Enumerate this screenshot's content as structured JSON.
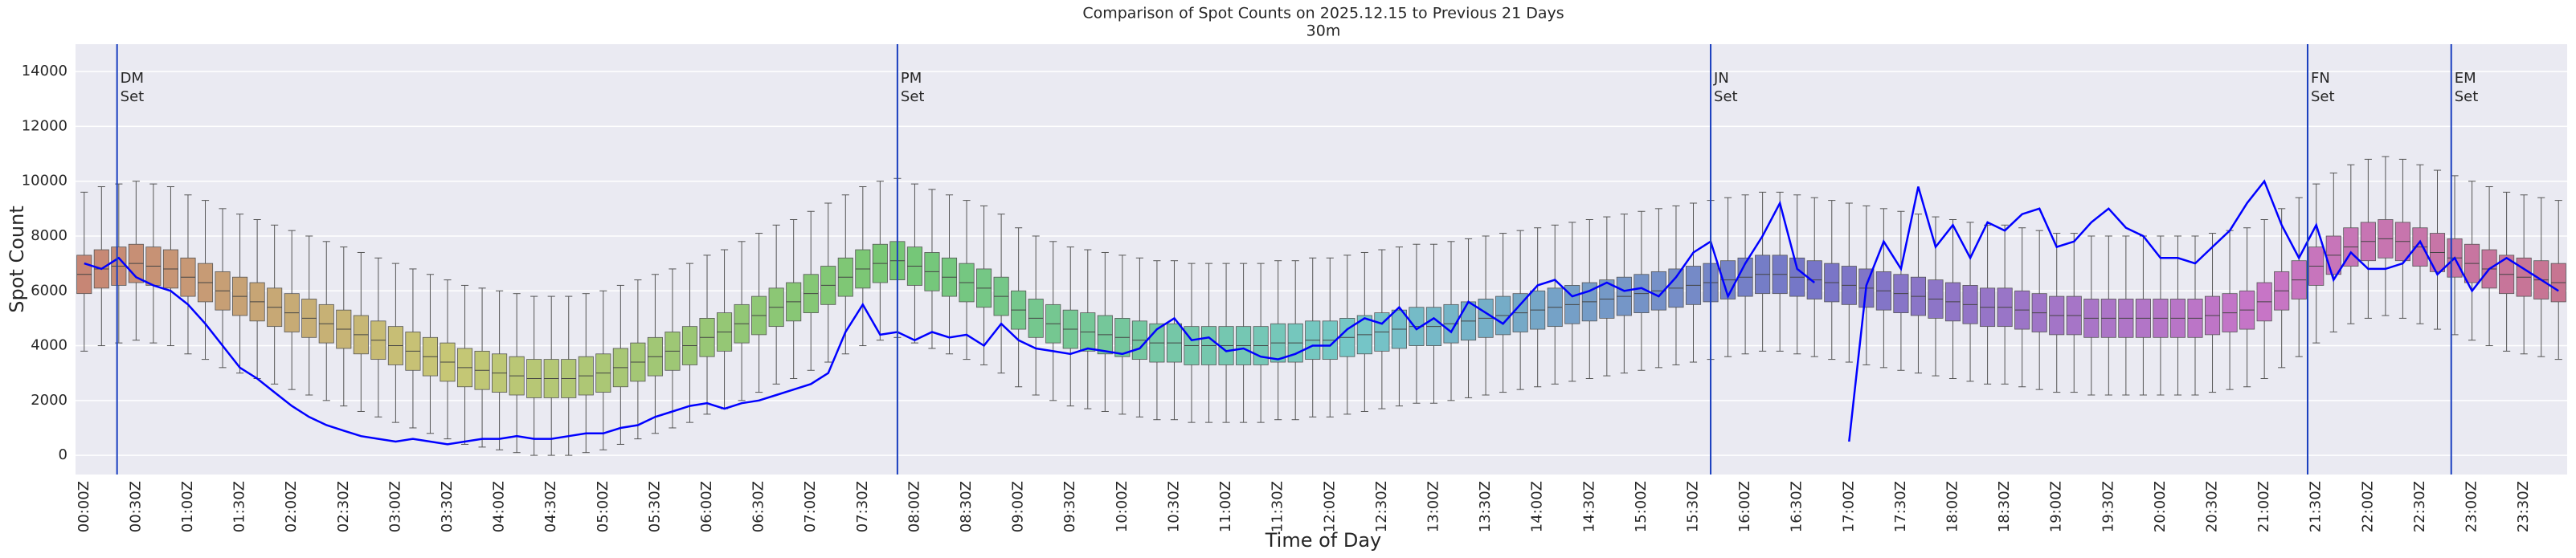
{
  "chart_data": {
    "type": "box",
    "title": "Comparison of Spot Counts on 2025.12.15 to Previous 21 Days",
    "subtitle": "30m",
    "x_label": "Time of Day",
    "y_label": "Spot Count",
    "ylim": [
      -700,
      15000
    ],
    "yticks": [
      0,
      2000,
      4000,
      6000,
      8000,
      10000,
      12000,
      14000
    ],
    "grid": true,
    "palette": "husl",
    "categories": [
      "00:00Z",
      null,
      null,
      "00:30Z",
      null,
      null,
      "01:00Z",
      null,
      null,
      "01:30Z",
      null,
      null,
      "02:00Z",
      null,
      null,
      "02:30Z",
      null,
      null,
      "03:00Z",
      null,
      null,
      "03:30Z",
      null,
      null,
      "04:00Z",
      null,
      null,
      "04:30Z",
      null,
      null,
      "05:00Z",
      null,
      null,
      "05:30Z",
      null,
      null,
      "06:00Z",
      null,
      null,
      "06:30Z",
      null,
      null,
      "07:00Z",
      null,
      null,
      "07:30Z",
      null,
      null,
      "08:00Z",
      null,
      null,
      "08:30Z",
      null,
      null,
      "09:00Z",
      null,
      null,
      "09:30Z",
      null,
      null,
      "10:00Z",
      null,
      null,
      "10:30Z",
      null,
      null,
      "11:00Z",
      null,
      null,
      "11:30Z",
      null,
      null,
      "12:00Z",
      null,
      null,
      "12:30Z",
      null,
      null,
      "13:00Z",
      null,
      null,
      "13:30Z",
      null,
      null,
      "14:00Z",
      null,
      null,
      "14:30Z",
      null,
      null,
      "15:00Z",
      null,
      null,
      "15:30Z",
      null,
      null,
      "16:00Z",
      null,
      null,
      "16:30Z",
      null,
      null,
      "17:00Z",
      null,
      null,
      "17:30Z",
      null,
      null,
      "18:00Z",
      null,
      null,
      "18:30Z",
      null,
      null,
      "19:00Z",
      null,
      null,
      "19:30Z",
      null,
      null,
      "20:00Z",
      null,
      null,
      "20:30Z",
      null,
      null,
      "21:00Z",
      null,
      null,
      "21:30Z",
      null,
      null,
      "22:00Z",
      null,
      null,
      "22:30Z",
      null,
      null,
      "23:00Z",
      null,
      null,
      "23:30Z",
      null,
      null
    ],
    "boxes": {
      "whislo": [
        3800,
        4000,
        4100,
        4200,
        4100,
        4000,
        3700,
        3500,
        3200,
        3000,
        2800,
        2600,
        2400,
        2200,
        2000,
        1800,
        1600,
        1400,
        1200,
        1000,
        800,
        600,
        400,
        300,
        200,
        100,
        0,
        0,
        0,
        100,
        200,
        400,
        600,
        800,
        1000,
        1200,
        1500,
        1700,
        2000,
        2300,
        2600,
        2800,
        3100,
        3400,
        3700,
        4000,
        4200,
        4300,
        4100,
        3900,
        3700,
        3500,
        3300,
        3000,
        2500,
        2200,
        2000,
        1800,
        1700,
        1600,
        1500,
        1400,
        1300,
        1300,
        1200,
        1200,
        1200,
        1200,
        1200,
        1300,
        1300,
        1400,
        1400,
        1500,
        1600,
        1700,
        1800,
        1900,
        1900,
        2000,
        2100,
        2200,
        2300,
        2400,
        2500,
        2600,
        2700,
        2800,
        2900,
        3000,
        3100,
        3200,
        3300,
        3400,
        3500,
        3600,
        3700,
        3800,
        3800,
        3700,
        3600,
        3500,
        3400,
        3300,
        3200,
        3100,
        3000,
        2900,
        2800,
        2700,
        2600,
        2600,
        2500,
        2400,
        2300,
        2300,
        2200,
        2200,
        2200,
        2200,
        2200,
        2200,
        2200,
        2300,
        2400,
        2500,
        2800,
        3200,
        3600,
        4100,
        4500,
        4800,
        5000,
        5100,
        5000,
        4800,
        4600,
        4400,
        4200,
        4000,
        3800,
        3700,
        3600,
        3500
      ],
      "q1": [
        5900,
        6100,
        6200,
        6300,
        6200,
        6100,
        5800,
        5600,
        5300,
        5100,
        4900,
        4700,
        4500,
        4300,
        4100,
        3900,
        3700,
        3500,
        3300,
        3100,
        2900,
        2700,
        2500,
        2400,
        2300,
        2200,
        2100,
        2100,
        2100,
        2200,
        2300,
        2500,
        2700,
        2900,
        3100,
        3300,
        3600,
        3800,
        4100,
        4400,
        4700,
        4900,
        5200,
        5500,
        5800,
        6100,
        6300,
        6400,
        6200,
        6000,
        5800,
        5600,
        5400,
        5100,
        4600,
        4300,
        4100,
        3900,
        3800,
        3700,
        3600,
        3500,
        3400,
        3400,
        3300,
        3300,
        3300,
        3300,
        3300,
        3400,
        3400,
        3500,
        3500,
        3600,
        3700,
        3800,
        3900,
        4000,
        4000,
        4100,
        4200,
        4300,
        4400,
        4500,
        4600,
        4700,
        4800,
        4900,
        5000,
        5100,
        5200,
        5300,
        5400,
        5500,
        5600,
        5700,
        5800,
        5900,
        5900,
        5800,
        5700,
        5600,
        5500,
        5400,
        5300,
        5200,
        5100,
        5000,
        4900,
        4800,
        4700,
        4700,
        4600,
        4500,
        4400,
        4400,
        4300,
        4300,
        4300,
        4300,
        4300,
        4300,
        4300,
        4400,
        4500,
        4600,
        4900,
        5300,
        5700,
        6200,
        6600,
        6900,
        7100,
        7200,
        7100,
        6900,
        6700,
        6500,
        6300,
        6100,
        5900,
        5800,
        5700,
        5600
      ],
      "median": [
        6600,
        6800,
        6900,
        7000,
        6900,
        6800,
        6500,
        6300,
        6000,
        5800,
        5600,
        5400,
        5200,
        5000,
        4800,
        4600,
        4400,
        4200,
        4000,
        3800,
        3600,
        3400,
        3200,
        3100,
        3000,
        2900,
        2800,
        2800,
        2800,
        2900,
        3000,
        3200,
        3400,
        3600,
        3800,
        4000,
        4300,
        4500,
        4800,
        5100,
        5400,
        5600,
        5900,
        6200,
        6500,
        6800,
        7000,
        7100,
        6900,
        6700,
        6500,
        6300,
        6100,
        5800,
        5300,
        5000,
        4800,
        4600,
        4500,
        4400,
        4300,
        4200,
        4100,
        4100,
        4000,
        4000,
        4000,
        4000,
        4000,
        4100,
        4100,
        4200,
        4200,
        4300,
        4400,
        4500,
        4600,
        4700,
        4700,
        4800,
        4900,
        5000,
        5100,
        5200,
        5300,
        5400,
        5500,
        5600,
        5700,
        5800,
        5900,
        6000,
        6100,
        6200,
        6300,
        6400,
        6500,
        6600,
        6600,
        6500,
        6400,
        6300,
        6200,
        6100,
        6000,
        5900,
        5800,
        5700,
        5600,
        5500,
        5400,
        5400,
        5300,
        5200,
        5100,
        5100,
        5000,
        5000,
        5000,
        5000,
        5000,
        5000,
        5000,
        5100,
        5200,
        5300,
        5600,
        6000,
        6400,
        6900,
        7300,
        7600,
        7800,
        7900,
        7800,
        7600,
        7400,
        7200,
        7000,
        6800,
        6600,
        6500,
        6400,
        6300
      ],
      "q3": [
        7300,
        7500,
        7600,
        7700,
        7600,
        7500,
        7200,
        7000,
        6700,
        6500,
        6300,
        6100,
        5900,
        5700,
        5500,
        5300,
        5100,
        4900,
        4700,
        4500,
        4300,
        4100,
        3900,
        3800,
        3700,
        3600,
        3500,
        3500,
        3500,
        3600,
        3700,
        3900,
        4100,
        4300,
        4500,
        4700,
        5000,
        5200,
        5500,
        5800,
        6100,
        6300,
        6600,
        6900,
        7200,
        7500,
        7700,
        7800,
        7600,
        7400,
        7200,
        7000,
        6800,
        6500,
        6000,
        5700,
        5500,
        5300,
        5200,
        5100,
        5000,
        4900,
        4800,
        4800,
        4700,
        4700,
        4700,
        4700,
        4700,
        4800,
        4800,
        4900,
        4900,
        5000,
        5100,
        5200,
        5300,
        5400,
        5400,
        5500,
        5600,
        5700,
        5800,
        5900,
        6000,
        6100,
        6200,
        6300,
        6400,
        6500,
        6600,
        6700,
        6800,
        6900,
        7000,
        7100,
        7200,
        7300,
        7300,
        7200,
        7100,
        7000,
        6900,
        6800,
        6700,
        6600,
        6500,
        6400,
        6300,
        6200,
        6100,
        6100,
        6000,
        5900,
        5800,
        5800,
        5700,
        5700,
        5700,
        5700,
        5700,
        5700,
        5700,
        5800,
        5900,
        6000,
        6300,
        6700,
        7100,
        7600,
        8000,
        8300,
        8500,
        8600,
        8500,
        8300,
        8100,
        7900,
        7700,
        7500,
        7300,
        7200,
        7100,
        7000
      ],
      "whishi": [
        9600,
        9800,
        9900,
        10000,
        9900,
        9800,
        9500,
        9300,
        9000,
        8800,
        8600,
        8400,
        8200,
        8000,
        7800,
        7600,
        7400,
        7200,
        7000,
        6800,
        6600,
        6400,
        6200,
        6100,
        6000,
        5900,
        5800,
        5800,
        5800,
        5900,
        6000,
        6200,
        6400,
        6600,
        6800,
        7000,
        7300,
        7500,
        7800,
        8100,
        8400,
        8600,
        8900,
        9200,
        9500,
        9800,
        10000,
        10100,
        9900,
        9700,
        9500,
        9300,
        9100,
        8800,
        8300,
        8000,
        7800,
        7600,
        7500,
        7400,
        7300,
        7200,
        7100,
        7100,
        7000,
        7000,
        7000,
        7000,
        7000,
        7100,
        7100,
        7200,
        7200,
        7300,
        7400,
        7500,
        7600,
        7700,
        7700,
        7800,
        7900,
        8000,
        8100,
        8200,
        8300,
        8400,
        8500,
        8600,
        8700,
        8800,
        8900,
        9000,
        9100,
        9200,
        9300,
        9400,
        9500,
        9600,
        9600,
        9500,
        9400,
        9300,
        9200,
        9100,
        9000,
        8900,
        8800,
        8700,
        8600,
        8500,
        8400,
        8400,
        8300,
        8200,
        8100,
        8100,
        8000,
        8000,
        8000,
        8000,
        8000,
        8000,
        8000,
        8100,
        8200,
        8300,
        8600,
        9000,
        9400,
        9900,
        10300,
        10600,
        10800,
        10900,
        10800,
        10600,
        10400,
        10200,
        10000,
        9800,
        9600,
        9500,
        9400,
        9300
      ]
    },
    "line": {
      "color": "#0000ff",
      "values": [
        7000,
        6800,
        7200,
        6500,
        6200,
        6000,
        5500,
        4800,
        4000,
        3200,
        2800,
        2300,
        1800,
        1400,
        1100,
        900,
        700,
        600,
        500,
        600,
        500,
        400,
        500,
        600,
        600,
        700,
        600,
        600,
        700,
        800,
        800,
        1000,
        1100,
        1400,
        1600,
        1800,
        1900,
        1700,
        1900,
        2000,
        2200,
        2400,
        2600,
        3000,
        4500,
        5500,
        4400,
        4500,
        4200,
        4500,
        4300,
        4400,
        4000,
        4800,
        4200,
        3900,
        3800,
        3700,
        3900,
        3800,
        3700,
        3900,
        4600,
        5000,
        4200,
        4300,
        3800,
        3900,
        3600,
        3500,
        3700,
        4000,
        4000,
        4600,
        5000,
        4800,
        5400,
        4600,
        5000,
        4500,
        5600,
        5200,
        4800,
        5500,
        6200,
        6400,
        5800,
        6000,
        6300,
        6000,
        6100,
        5800,
        6500,
        7400,
        7800,
        5800,
        7000,
        8000,
        9200,
        6800,
        6300,
        null,
        500,
        6200,
        7800,
        6800,
        9800,
        7600,
        8400,
        7200,
        8500,
        8200,
        8800,
        9000,
        7600,
        7800,
        8500,
        9000,
        8300,
        8000,
        7200,
        7200,
        7000,
        7600,
        8200,
        9200,
        10000,
        8400,
        7200,
        8400,
        6400,
        7400,
        6800,
        6800,
        7000,
        7800,
        6600,
        7200,
        6000,
        6800,
        7200,
        6800,
        6400,
        6000
      ]
    },
    "events": {
      "color": "#1a3fbf",
      "items": [
        {
          "minute": 19,
          "label": "DM",
          "sublabel": "Set"
        },
        {
          "minute": 470,
          "label": "PM",
          "sublabel": "Set"
        },
        {
          "minute": 940,
          "label": "JN",
          "sublabel": "Set"
        },
        {
          "minute": 1285,
          "label": "FN",
          "sublabel": "Set"
        },
        {
          "minute": 1368,
          "label": "EM",
          "sublabel": "Set"
        }
      ]
    }
  }
}
